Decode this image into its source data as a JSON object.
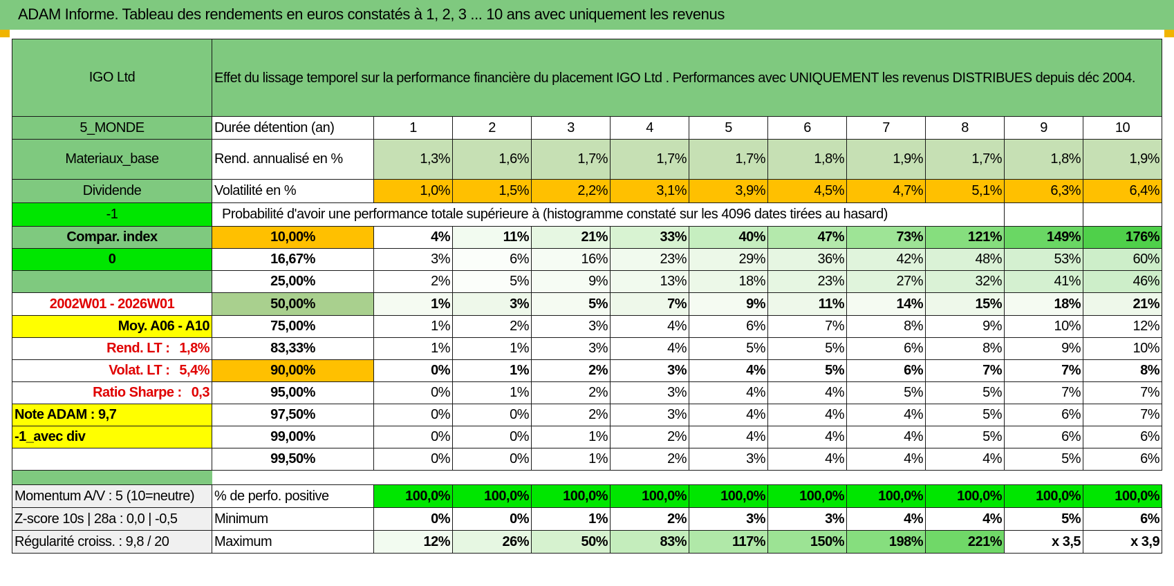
{
  "title": "ADAM Informe. Tableau des rendements en euros constatés à 1, 2, 3 ... 10 ans avec uniquement les revenus",
  "fund": {
    "name": "IGO Ltd",
    "description": "Effet du lissage temporel sur la performance financière du placement IGO Ltd . Performances avec UNIQUEMENT les revenus DISTRIBUES depuis déc 2004.",
    "zone": "5_MONDE",
    "sector": "Materiaux_base",
    "type": "Dividende",
    "code_1": "-1",
    "compar_label": "Compar. index",
    "code_2": "0",
    "period": "2002W01 - 2026W01",
    "moy_label": "Moy. A06 - A10",
    "rend_lt_label": "Rend. LT :",
    "rend_lt_value": "1,8%",
    "volat_lt_label": "Volat. LT :",
    "volat_lt_value": "5,4%",
    "sharpe_label": "Ratio Sharpe :",
    "sharpe_value": "0,3",
    "note": "Note ADAM : 9,7",
    "variant": "-1_avec div"
  },
  "table": {
    "duration_label": "Durée détention (an)",
    "years": [
      "1",
      "2",
      "3",
      "4",
      "5",
      "6",
      "7",
      "8",
      "9",
      "10"
    ],
    "rend_label": "Rend. annualisé en %",
    "rend": [
      "1,3%",
      "1,6%",
      "1,7%",
      "1,7%",
      "1,7%",
      "1,8%",
      "1,9%",
      "1,7%",
      "1,8%",
      "1,9%"
    ],
    "vol_label": "Volatilité en %",
    "vol": [
      "1,0%",
      "1,5%",
      "2,2%",
      "3,1%",
      "3,9%",
      "4,5%",
      "4,7%",
      "5,1%",
      "6,3%",
      "6,4%"
    ],
    "prob_label": "Probabilité d'avoir une performance totale supérieure à (histogramme constaté sur les 4096 dates tirées au hasard)",
    "percentiles": [
      {
        "p": "10,00%",
        "v": [
          "4%",
          "11%",
          "21%",
          "33%",
          "40%",
          "47%",
          "73%",
          "121%",
          "149%",
          "176%"
        ]
      },
      {
        "p": "16,67%",
        "v": [
          "3%",
          "6%",
          "16%",
          "23%",
          "29%",
          "36%",
          "42%",
          "48%",
          "53%",
          "60%"
        ]
      },
      {
        "p": "25,00%",
        "v": [
          "2%",
          "5%",
          "9%",
          "13%",
          "18%",
          "23%",
          "27%",
          "32%",
          "41%",
          "46%"
        ]
      },
      {
        "p": "50,00%",
        "v": [
          "1%",
          "3%",
          "5%",
          "7%",
          "9%",
          "11%",
          "14%",
          "15%",
          "18%",
          "21%"
        ]
      },
      {
        "p": "75,00%",
        "v": [
          "1%",
          "2%",
          "3%",
          "4%",
          "6%",
          "7%",
          "8%",
          "9%",
          "10%",
          "12%"
        ]
      },
      {
        "p": "83,33%",
        "v": [
          "1%",
          "1%",
          "3%",
          "4%",
          "5%",
          "5%",
          "6%",
          "8%",
          "9%",
          "10%"
        ]
      },
      {
        "p": "90,00%",
        "v": [
          "0%",
          "1%",
          "2%",
          "3%",
          "4%",
          "5%",
          "6%",
          "7%",
          "7%",
          "8%"
        ]
      },
      {
        "p": "95,00%",
        "v": [
          "0%",
          "1%",
          "2%",
          "3%",
          "4%",
          "4%",
          "5%",
          "5%",
          "7%",
          "7%"
        ]
      },
      {
        "p": "97,50%",
        "v": [
          "0%",
          "0%",
          "2%",
          "3%",
          "4%",
          "4%",
          "4%",
          "5%",
          "6%",
          "7%"
        ]
      },
      {
        "p": "99,00%",
        "v": [
          "0%",
          "0%",
          "1%",
          "2%",
          "4%",
          "4%",
          "4%",
          "5%",
          "6%",
          "6%"
        ]
      },
      {
        "p": "99,50%",
        "v": [
          "0%",
          "0%",
          "1%",
          "2%",
          "3%",
          "4%",
          "4%",
          "4%",
          "5%",
          "6%"
        ]
      }
    ],
    "pos_label": "% de perfo. positive",
    "pos": [
      "100,0%",
      "100,0%",
      "100,0%",
      "100,0%",
      "100,0%",
      "100,0%",
      "100,0%",
      "100,0%",
      "100,0%",
      "100,0%"
    ],
    "min_label": "Minimum",
    "min": [
      "0%",
      "0%",
      "1%",
      "2%",
      "3%",
      "3%",
      "4%",
      "4%",
      "5%",
      "6%"
    ],
    "max_label": "Maximum",
    "max": [
      "12%",
      "26%",
      "50%",
      "83%",
      "117%",
      "150%",
      "198%",
      "221%",
      "x 3,5",
      "x 3,9"
    ]
  },
  "bottom": {
    "momentum": "Momentum A/V : 5 (10=neutre)",
    "zscore": "Z-score 10s | 28a : 0,0 | -0,5",
    "regularite": "Régularité croiss. : 9,8 / 20"
  },
  "colors": {
    "header_green": "#7fc97f",
    "bright_green": "#00e600",
    "orange": "#ffc000",
    "yellow": "#ffff00",
    "red_text": "#e00000"
  }
}
